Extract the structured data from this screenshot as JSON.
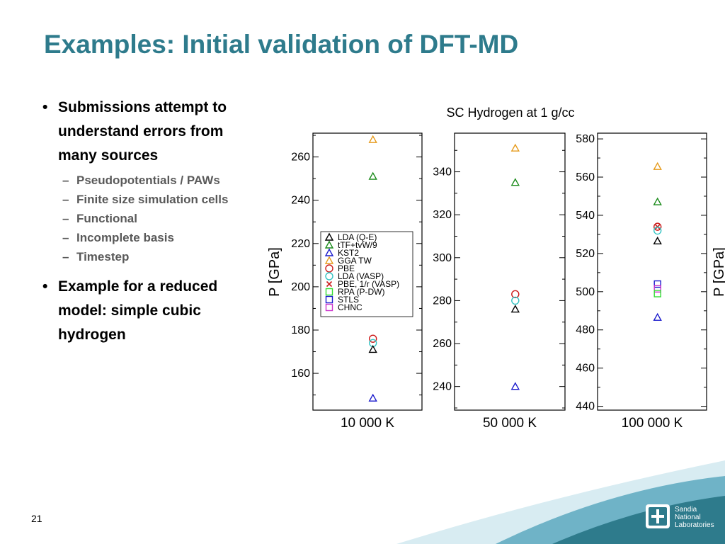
{
  "slide": {
    "title": "Examples: Initial validation of DFT-MD",
    "page_number": "21",
    "bullets": [
      {
        "text": "Submissions attempt to understand errors from many sources",
        "subs": [
          "Pseudopotentials / PAWs",
          "Finite size simulation cells",
          "Functional",
          "Incomplete basis",
          "Timestep"
        ]
      },
      {
        "text": "Example for a reduced model: simple cubic hydrogen",
        "subs": []
      }
    ],
    "logo_text": [
      "Sandia",
      "National",
      "Laboratories"
    ],
    "colors": {
      "title": "#2e7b8c",
      "wave": "#6fb3c7"
    }
  },
  "chart_data": {
    "type": "scatter",
    "title": "SC Hydrogen at 1 g/cc",
    "ylabel": "P [GPa]",
    "legend": {
      "placement": "inside-left-panel",
      "entries": [
        {
          "name": "LDA (Q-E)",
          "marker": "triangle",
          "color": "#000000"
        },
        {
          "name": "tTF+tvW/9",
          "marker": "triangle",
          "color": "#1a8a1a"
        },
        {
          "name": "KST2",
          "marker": "triangle",
          "color": "#1a1acc"
        },
        {
          "name": "GGA TW",
          "marker": "triangle",
          "color": "#e69a1a"
        },
        {
          "name": "PBE",
          "marker": "circle",
          "color": "#cc1a1a"
        },
        {
          "name": "LDA (VASP)",
          "marker": "circle",
          "color": "#33c4c4"
        },
        {
          "name": "PBE, 1/r (VASP)",
          "marker": "x",
          "color": "#cc1a1a"
        },
        {
          "name": "RPA (P-DW)",
          "marker": "square",
          "color": "#33dd33"
        },
        {
          "name": "STLS",
          "marker": "square",
          "color": "#1a1acc"
        },
        {
          "name": "CHNC",
          "marker": "square",
          "color": "#cc33cc"
        }
      ]
    },
    "panels": [
      {
        "xlabel": "10 000 K",
        "ylim": [
          143,
          271
        ],
        "yticks": [
          160,
          180,
          200,
          220,
          240,
          260
        ],
        "points": [
          {
            "series": "GGA TW",
            "y": 268
          },
          {
            "series": "tTF+tvW/9",
            "y": 251
          },
          {
            "series": "PBE",
            "y": 176
          },
          {
            "series": "LDA (VASP)",
            "y": 174
          },
          {
            "series": "LDA (Q-E)",
            "y": 171
          },
          {
            "series": "KST2",
            "y": 148.5
          }
        ]
      },
      {
        "xlabel": "50 000 K",
        "ylim": [
          229,
          358
        ],
        "yticks": [
          240,
          260,
          280,
          300,
          320,
          340
        ],
        "points": [
          {
            "series": "GGA TW",
            "y": 351
          },
          {
            "series": "tTF+tvW/9",
            "y": 335
          },
          {
            "series": "PBE",
            "y": 283
          },
          {
            "series": "LDA (VASP)",
            "y": 280
          },
          {
            "series": "LDA (Q-E)",
            "y": 276
          },
          {
            "series": "KST2",
            "y": 240
          }
        ]
      },
      {
        "xlabel": "100 000 K",
        "ylim": [
          438,
          583
        ],
        "yticks": [
          440,
          460,
          480,
          500,
          520,
          540,
          560,
          580
        ],
        "points": [
          {
            "series": "GGA TW",
            "y": 565.5
          },
          {
            "series": "tTF+tvW/9",
            "y": 547
          },
          {
            "series": "PBE",
            "y": 534
          },
          {
            "series": "PBE, 1/r (VASP)",
            "y": 534
          },
          {
            "series": "LDA (VASP)",
            "y": 532
          },
          {
            "series": "LDA (Q-E)",
            "y": 526.5
          },
          {
            "series": "STLS",
            "y": 504
          },
          {
            "series": "CHNC",
            "y": 501.5
          },
          {
            "series": "RPA (P-DW)",
            "y": 499
          },
          {
            "series": "KST2",
            "y": 486.5
          }
        ]
      }
    ]
  }
}
